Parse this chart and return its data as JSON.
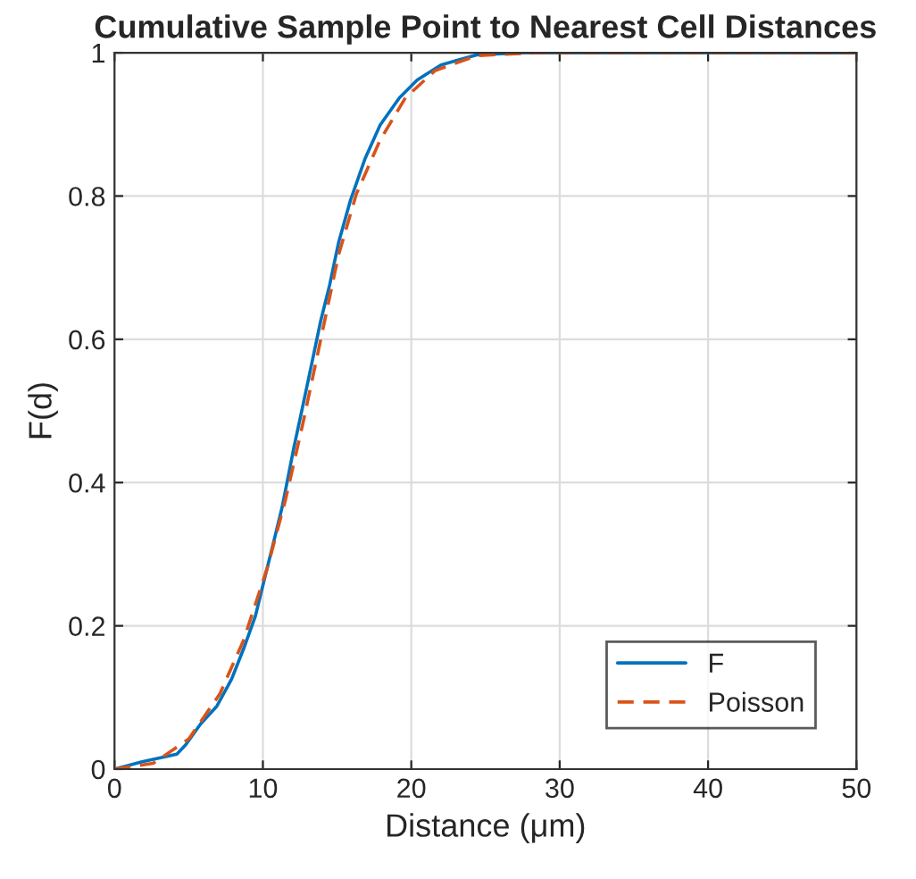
{
  "chart_data": {
    "type": "line",
    "title": "Cumulative Sample Point to Nearest Cell Distances",
    "xlabel": "Distance (μm)",
    "ylabel": "F(d)",
    "xlim": [
      0,
      50
    ],
    "xticks": [
      0,
      10,
      20,
      30,
      40,
      50
    ],
    "ylim": [
      0,
      1
    ],
    "yticks": [
      0,
      0.2,
      0.4,
      0.6,
      0.8,
      1
    ],
    "grid": true,
    "legend": "bottom right",
    "series": [
      {
        "name": "F",
        "color": "#0072bd",
        "line_style": "solid",
        "x": [
          0,
          1.8,
          4.2,
          4.8,
          5.8,
          6.9,
          7.9,
          8.7,
          9.5,
          10.1,
          10.7,
          11.3,
          11.7,
          12.1,
          12.7,
          13.3,
          13.9,
          14.5,
          15.1,
          15.9,
          16.9,
          17.9,
          19.2,
          20.4,
          22.0,
          24.4,
          27.6,
          50
        ],
        "values": [
          0,
          0.01,
          0.021,
          0.034,
          0.063,
          0.088,
          0.126,
          0.168,
          0.214,
          0.265,
          0.315,
          0.366,
          0.408,
          0.45,
          0.508,
          0.567,
          0.626,
          0.676,
          0.735,
          0.794,
          0.853,
          0.899,
          0.937,
          0.962,
          0.983,
          0.997,
          1,
          1
        ]
      },
      {
        "name": "Poisson",
        "color": "#d95319",
        "line_style": "dashed",
        "x": [
          0,
          2.6,
          5.0,
          7.1,
          8.7,
          10.3,
          11.5,
          12.7,
          13.9,
          15.1,
          16.3,
          17.9,
          19.6,
          21.6,
          24.4,
          28.4,
          50
        ],
        "values": [
          0,
          0.008,
          0.042,
          0.105,
          0.18,
          0.281,
          0.374,
          0.483,
          0.6,
          0.718,
          0.803,
          0.878,
          0.937,
          0.975,
          0.996,
          1,
          1
        ]
      }
    ]
  }
}
